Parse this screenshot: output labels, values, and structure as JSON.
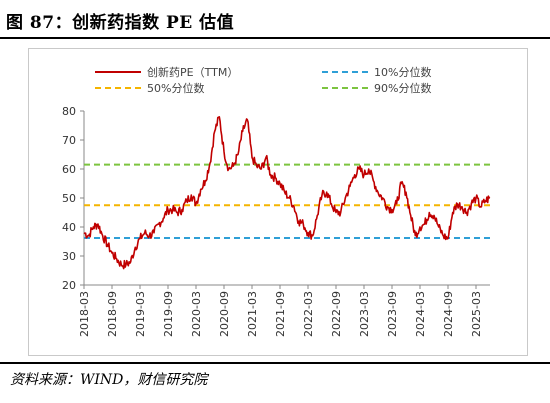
{
  "header": {
    "figure_title": "图 87：创新药指数 PE 估值"
  },
  "footer": {
    "source": "资料来源：WIND，财信研究院"
  },
  "chart_data": {
    "type": "line",
    "ylim": [
      20,
      80
    ],
    "yticks": [
      20,
      30,
      40,
      50,
      60,
      70,
      80
    ],
    "xticks": [
      "2018-03",
      "2018-09",
      "2019-03",
      "2019-09",
      "2020-03",
      "2020-09",
      "2021-03",
      "2021-09",
      "2022-03",
      "2022-09",
      "2023-03",
      "2023-09",
      "2024-03",
      "2024-09",
      "2025-03"
    ],
    "x_range": [
      "2018-03",
      "2025-06"
    ],
    "grid": false,
    "legend_placement": "top",
    "series": [
      {
        "name": "创新药PE（TTM）",
        "color": "#c00000",
        "points": [
          [
            "2018-03",
            38
          ],
          [
            "2018-04",
            37
          ],
          [
            "2018-05",
            40
          ],
          [
            "2018-06",
            41
          ],
          [
            "2018-07",
            37
          ],
          [
            "2018-08",
            34
          ],
          [
            "2018-09",
            31
          ],
          [
            "2018-10",
            29
          ],
          [
            "2018-11",
            27
          ],
          [
            "2018-12",
            27
          ],
          [
            "2019-01",
            28
          ],
          [
            "2019-02",
            33
          ],
          [
            "2019-03",
            36
          ],
          [
            "2019-04",
            38
          ],
          [
            "2019-05",
            37
          ],
          [
            "2019-06",
            38
          ],
          [
            "2019-07",
            41
          ],
          [
            "2019-08",
            43
          ],
          [
            "2019-09",
            46
          ],
          [
            "2019-10",
            46
          ],
          [
            "2019-11",
            45
          ],
          [
            "2019-12",
            46
          ],
          [
            "2020-01",
            49
          ],
          [
            "2020-02",
            51
          ],
          [
            "2020-03",
            48
          ],
          [
            "2020-04",
            53
          ],
          [
            "2020-05",
            56
          ],
          [
            "2020-06",
            62
          ],
          [
            "2020-07",
            73
          ],
          [
            "2020-08",
            78
          ],
          [
            "2020-09",
            66
          ],
          [
            "2020-10",
            60
          ],
          [
            "2020-11",
            61
          ],
          [
            "2020-12",
            65
          ],
          [
            "2021-01",
            73
          ],
          [
            "2021-02",
            77
          ],
          [
            "2021-03",
            64
          ],
          [
            "2021-04",
            61
          ],
          [
            "2021-05",
            60
          ],
          [
            "2021-06",
            64
          ],
          [
            "2021-07",
            58
          ],
          [
            "2021-08",
            57
          ],
          [
            "2021-09",
            55
          ],
          [
            "2021-10",
            52
          ],
          [
            "2021-11",
            50
          ],
          [
            "2021-12",
            47
          ],
          [
            "2022-01",
            42
          ],
          [
            "2022-02",
            41
          ],
          [
            "2022-03",
            38
          ],
          [
            "2022-04",
            37
          ],
          [
            "2022-05",
            44
          ],
          [
            "2022-06",
            51
          ],
          [
            "2022-07",
            52
          ],
          [
            "2022-08",
            48
          ],
          [
            "2022-09",
            45
          ],
          [
            "2022-10",
            45
          ],
          [
            "2022-11",
            50
          ],
          [
            "2022-12",
            54
          ],
          [
            "2023-01",
            58
          ],
          [
            "2023-02",
            60
          ],
          [
            "2023-03",
            58
          ],
          [
            "2023-04",
            60
          ],
          [
            "2023-05",
            56
          ],
          [
            "2023-06",
            52
          ],
          [
            "2023-07",
            50
          ],
          [
            "2023-08",
            47
          ],
          [
            "2023-09",
            46
          ],
          [
            "2023-10",
            48
          ],
          [
            "2023-11",
            55
          ],
          [
            "2023-12",
            52
          ],
          [
            "2024-01",
            44
          ],
          [
            "2024-02",
            37
          ],
          [
            "2024-03",
            40
          ],
          [
            "2024-04",
            41
          ],
          [
            "2024-05",
            45
          ],
          [
            "2024-06",
            44
          ],
          [
            "2024-07",
            40
          ],
          [
            "2024-08",
            37
          ],
          [
            "2024-09",
            36
          ],
          [
            "2024-10",
            45
          ],
          [
            "2024-11",
            48
          ],
          [
            "2024-12",
            47
          ],
          [
            "2025-01",
            45
          ],
          [
            "2025-02",
            48
          ],
          [
            "2025-03",
            50
          ],
          [
            "2025-04",
            47
          ],
          [
            "2025-05",
            49
          ],
          [
            "2025-06",
            50
          ]
        ]
      },
      {
        "name": "10%分位数",
        "color": "#2e9fd6",
        "value": 36.2,
        "dash": true
      },
      {
        "name": "50%分位数",
        "color": "#f4b400",
        "value": 47.5,
        "dash": true
      },
      {
        "name": "90%分位数",
        "color": "#7cc43f",
        "value": 61.5,
        "dash": true
      }
    ]
  }
}
